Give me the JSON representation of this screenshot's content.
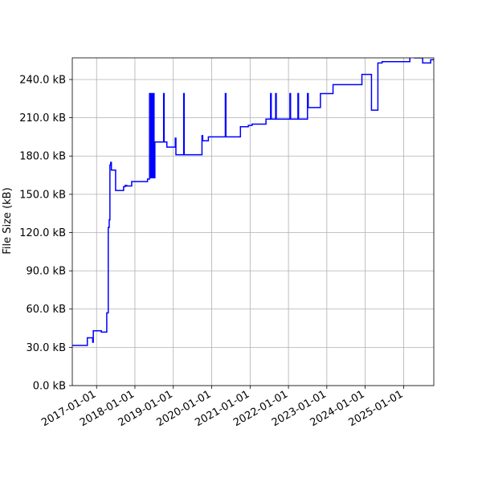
{
  "chart_data": {
    "type": "line",
    "title": "",
    "xlabel": "",
    "ylabel": "File Size (kB)",
    "grid": true,
    "legend": "none",
    "x_type": "date",
    "xlim": [
      "2016-05-15",
      "2025-10-15"
    ],
    "ylim": [
      0,
      257
    ],
    "x_ticks": [
      "2017-01-01",
      "2018-01-01",
      "2019-01-01",
      "2020-01-01",
      "2021-01-01",
      "2022-01-01",
      "2023-01-01",
      "2024-01-01",
      "2025-01-01"
    ],
    "y_ticks": [
      0,
      30,
      60,
      90,
      120,
      150,
      180,
      210,
      240
    ],
    "y_tick_labels": [
      "0.0 kB",
      "30.0 kB",
      "60.0 kB",
      "90.0 kB",
      "120.0 kB",
      "150.0 kB",
      "180.0 kB",
      "210.0 kB",
      "240.0 kB"
    ],
    "series": [
      {
        "color": "#0000ff",
        "step": true,
        "points": [
          [
            "2016-05-15",
            31.5
          ],
          [
            "2016-10-05",
            37.5
          ],
          [
            "2016-11-25",
            34
          ],
          [
            "2016-12-01",
            43
          ],
          [
            "2017-02-15",
            42
          ],
          [
            "2017-04-08",
            57
          ],
          [
            "2017-04-22",
            124
          ],
          [
            "2017-05-01",
            130
          ],
          [
            "2017-05-08",
            173
          ],
          [
            "2017-05-15",
            175
          ],
          [
            "2017-05-22",
            169
          ],
          [
            "2017-07-01",
            153
          ],
          [
            "2017-09-15",
            156
          ],
          [
            "2017-10-01",
            157
          ],
          [
            "2017-10-15",
            156.5
          ],
          [
            "2017-12-01",
            160
          ],
          [
            "2018-05-01",
            162
          ],
          [
            "2018-05-20",
            229
          ],
          [
            "2018-06-01",
            163
          ],
          [
            "2018-06-10",
            229
          ],
          [
            "2018-06-18",
            163
          ],
          [
            "2018-06-25",
            229
          ],
          [
            "2018-07-02",
            163
          ],
          [
            "2018-07-10",
            191
          ],
          [
            "2018-10-01",
            229
          ],
          [
            "2018-10-06",
            191
          ],
          [
            "2018-11-01",
            187
          ],
          [
            "2019-01-20",
            194
          ],
          [
            "2019-01-26",
            181
          ],
          [
            "2019-04-10",
            229
          ],
          [
            "2019-04-15",
            181
          ],
          [
            "2019-10-01",
            196
          ],
          [
            "2019-10-08",
            192
          ],
          [
            "2019-12-01",
            195
          ],
          [
            "2020-05-10",
            229
          ],
          [
            "2020-05-16",
            195
          ],
          [
            "2020-10-01",
            203
          ],
          [
            "2020-12-15",
            204
          ],
          [
            "2021-01-20",
            205
          ],
          [
            "2021-06-01",
            209
          ],
          [
            "2021-07-15",
            229
          ],
          [
            "2021-07-21",
            209
          ],
          [
            "2021-09-01",
            229
          ],
          [
            "2021-09-07",
            209
          ],
          [
            "2022-01-15",
            229
          ],
          [
            "2022-01-21",
            209
          ],
          [
            "2022-04-01",
            229
          ],
          [
            "2022-04-07",
            209
          ],
          [
            "2022-07-01",
            229
          ],
          [
            "2022-07-08",
            218
          ],
          [
            "2022-11-01",
            229
          ],
          [
            "2023-03-01",
            236
          ],
          [
            "2023-12-01",
            244
          ],
          [
            "2024-03-01",
            216
          ],
          [
            "2024-05-01",
            253
          ],
          [
            "2024-06-10",
            254
          ],
          [
            "2025-03-01",
            258
          ],
          [
            "2025-04-15",
            257
          ],
          [
            "2025-07-01",
            253
          ],
          [
            "2025-09-15",
            255.5
          ]
        ],
        "end": "2025-10-15"
      }
    ]
  }
}
